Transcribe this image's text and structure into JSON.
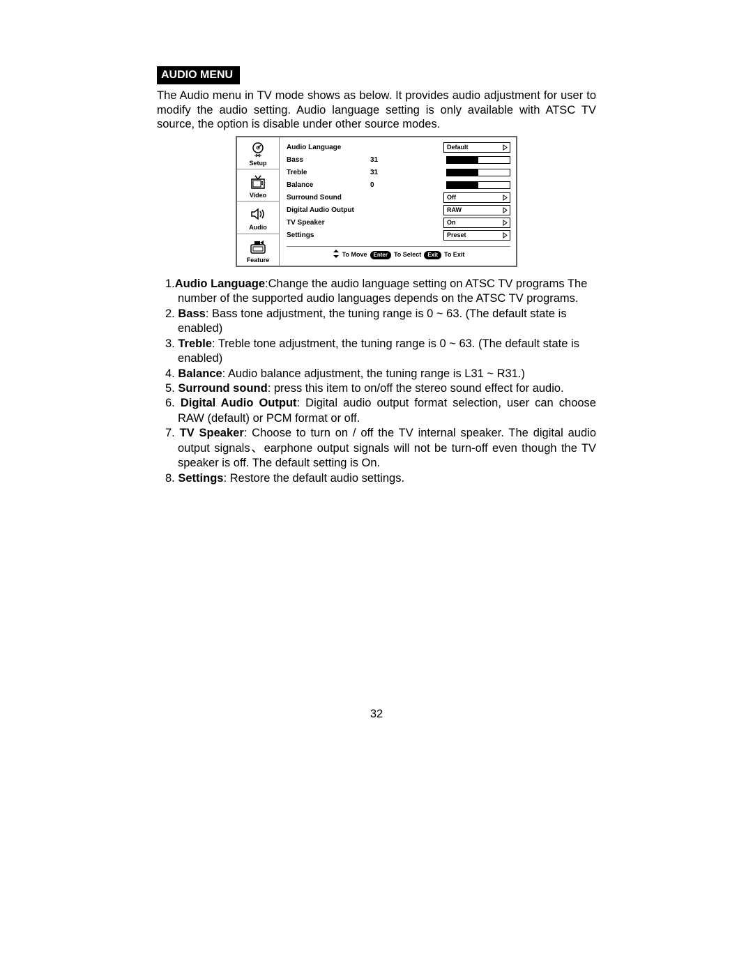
{
  "section_title": "AUDIO MENU",
  "intro": "The Audio menu in TV mode shows as below. It provides audio adjustment for user to modify the audio setting. Audio language setting is only available with ATSC TV source, the option is disable under other source modes.",
  "osd": {
    "tabs": [
      {
        "label": "Setup"
      },
      {
        "label": "Video"
      },
      {
        "label": "Audio"
      },
      {
        "label": "Feature"
      }
    ],
    "rows": [
      {
        "label": "Audio Language",
        "type": "dropdown",
        "value": "Default"
      },
      {
        "label": "Bass",
        "type": "slider",
        "num": "31",
        "fill_pct": 50
      },
      {
        "label": "Treble",
        "type": "slider",
        "num": "31",
        "fill_pct": 50
      },
      {
        "label": "Balance",
        "type": "slider",
        "num": "0",
        "fill_pct": 50
      },
      {
        "label": "Surround Sound",
        "type": "dropdown",
        "value": "Off"
      },
      {
        "label": "Digital Audio Output",
        "type": "dropdown",
        "value": "RAW"
      },
      {
        "label": "TV Speaker",
        "type": "dropdown",
        "value": "On"
      },
      {
        "label": "Settings",
        "type": "dropdown",
        "value": "Preset"
      }
    ],
    "hints": {
      "move": "To Move",
      "enter_pill": "Enter",
      "select": "To Select",
      "exit_pill": "Exit",
      "exit": "To Exit"
    }
  },
  "items": [
    {
      "num": "1.",
      "bold": "Audio Language",
      "rest": ":Change the audio language setting on ATSC TV programs The number of the supported audio languages depends on the ATSC TV programs.",
      "justify": false
    },
    {
      "num": "2.",
      "bold": "Bass",
      "rest": ": Bass tone adjustment, the tuning range is 0 ~ 63. (The default state is enabled)",
      "justify": false
    },
    {
      "num": "3.",
      "bold": "Treble",
      "rest": ": Treble tone adjustment, the tuning range is 0 ~ 63. (The default state is enabled)",
      "justify": false
    },
    {
      "num": "4.",
      "bold": "Balance",
      "rest": ": Audio balance adjustment, the tuning range is L31 ~ R31.)",
      "justify": false
    },
    {
      "num": "5.",
      "bold": "Surround sound",
      "rest": ": press this item to on/off the stereo sound effect for audio.",
      "justify": false
    },
    {
      "num": "6.",
      "bold": "Digital Audio Output",
      "rest": ": Digital audio output format selection, user can  choose RAW (default) or PCM format or off.",
      "justify": true
    },
    {
      "num": "7.",
      "bold": "TV Speaker",
      "rest": ": Choose to turn on / off the TV internal speaker. The digital audio output signals、earphone output signals  will not be turn-off even though the TV speaker is off. The default setting is On.",
      "justify": true
    },
    {
      "num": "8.",
      "bold": "Settings",
      "rest": ": Restore the default audio settings.",
      "justify": false
    }
  ],
  "page_number": "32"
}
